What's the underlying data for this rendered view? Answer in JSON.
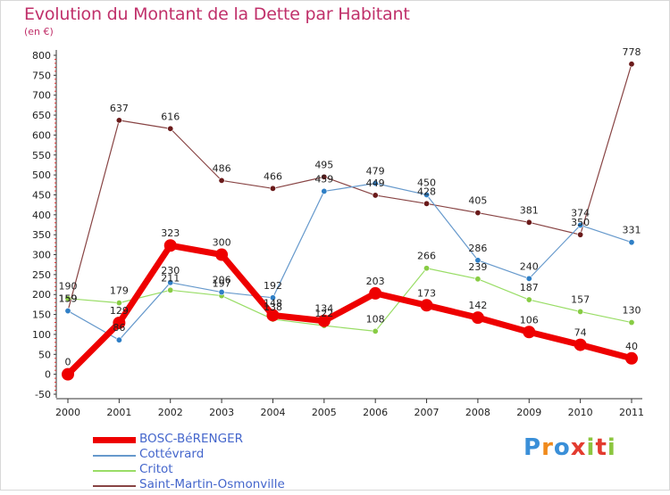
{
  "header": {
    "title": "Evolution du Montant de la Dette par Habitant",
    "subtitle": "(en €)"
  },
  "logo": {
    "text": "Proxiti",
    "colors": [
      "#3a8fd8",
      "#f08a1c",
      "#3a8fd8",
      "#e33b2f",
      "#8cc63f",
      "#e33b2f",
      "#8cc63f"
    ]
  },
  "chart_data": {
    "type": "line",
    "title": "Evolution du Montant de la Dette par Habitant",
    "subtitle": "(en €)",
    "x": [
      "2000",
      "2001",
      "2002",
      "2003",
      "2004",
      "2005",
      "2006",
      "2007",
      "2008",
      "2009",
      "2010",
      "2011"
    ],
    "ylim": [
      -50,
      800
    ],
    "yticks": [
      -50,
      0,
      50,
      100,
      150,
      200,
      250,
      300,
      350,
      400,
      450,
      500,
      550,
      600,
      650,
      700,
      750,
      800
    ],
    "grid": false,
    "legend": "bottom-left",
    "series": [
      {
        "name": "BOSC-BéRENGER",
        "color": "#ee0000",
        "width": 7,
        "marker": 7,
        "values": [
          0,
          129,
          323,
          300,
          148,
          134,
          203,
          173,
          142,
          106,
          74,
          40
        ]
      },
      {
        "name": "Cottévrard",
        "color": "#6699cc",
        "width": 1.2,
        "marker": 3.2,
        "markerColor": "#2f7fc6",
        "values": [
          159,
          86,
          230,
          206,
          192,
          459,
          479,
          450,
          286,
          240,
          374,
          331
        ]
      },
      {
        "name": "Critot",
        "color": "#99dd66",
        "width": 1.2,
        "marker": 3.2,
        "markerColor": "#88cc44",
        "values": [
          190,
          179,
          211,
          197,
          138,
          122,
          108,
          266,
          239,
          187,
          157,
          130
        ]
      },
      {
        "name": "Saint-Martin-Osmonville",
        "color": "#884444",
        "width": 1.2,
        "marker": 3.2,
        "markerColor": "#6a1a1a",
        "values": [
          159,
          637,
          616,
          486,
          466,
          495,
          449,
          428,
          405,
          381,
          350,
          778
        ]
      }
    ]
  }
}
